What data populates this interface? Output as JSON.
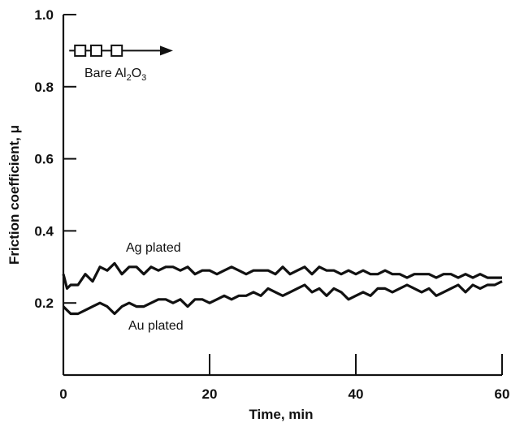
{
  "chart_data": {
    "type": "line",
    "title": "",
    "xlabel": "Time, min",
    "ylabel": "Friction coefficient, μ",
    "xlim": [
      0,
      60
    ],
    "ylim": [
      0,
      1.0
    ],
    "x_ticks": [
      0,
      20,
      40,
      60
    ],
    "x_tick_labels": [
      "0",
      "20",
      "40",
      "60"
    ],
    "y_ticks": [
      0.2,
      0.4,
      0.6,
      0.8,
      1.0
    ],
    "y_tick_labels": [
      "0.2",
      "0.4",
      "0.6",
      "0.8",
      "1.0"
    ],
    "grid": false,
    "series": [
      {
        "name": "Ag plated",
        "marker": "none",
        "x": [
          0,
          0.5,
          1,
          2,
          3,
          4,
          5,
          6,
          7,
          8,
          9,
          10,
          11,
          12,
          13,
          14,
          15,
          16,
          17,
          18,
          19,
          20,
          21,
          22,
          23,
          24,
          25,
          26,
          27,
          28,
          29,
          30,
          31,
          32,
          33,
          34,
          35,
          36,
          37,
          38,
          39,
          40,
          41,
          42,
          43,
          44,
          45,
          46,
          47,
          48,
          49,
          50,
          51,
          52,
          53,
          54,
          55,
          56,
          57,
          58,
          59,
          60
        ],
        "values": [
          0.28,
          0.24,
          0.25,
          0.25,
          0.28,
          0.26,
          0.3,
          0.29,
          0.31,
          0.28,
          0.3,
          0.3,
          0.28,
          0.3,
          0.29,
          0.3,
          0.3,
          0.29,
          0.3,
          0.28,
          0.29,
          0.29,
          0.28,
          0.29,
          0.3,
          0.29,
          0.28,
          0.29,
          0.29,
          0.29,
          0.28,
          0.3,
          0.28,
          0.29,
          0.3,
          0.28,
          0.3,
          0.29,
          0.29,
          0.28,
          0.29,
          0.28,
          0.29,
          0.28,
          0.28,
          0.29,
          0.28,
          0.28,
          0.27,
          0.28,
          0.28,
          0.28,
          0.27,
          0.28,
          0.28,
          0.27,
          0.28,
          0.27,
          0.28,
          0.27,
          0.27,
          0.27
        ]
      },
      {
        "name": "Au plated",
        "marker": "none",
        "x": [
          0,
          0.5,
          1,
          2,
          3,
          4,
          5,
          6,
          7,
          8,
          9,
          10,
          11,
          12,
          13,
          14,
          15,
          16,
          17,
          18,
          19,
          20,
          21,
          22,
          23,
          24,
          25,
          26,
          27,
          28,
          29,
          30,
          31,
          32,
          33,
          34,
          35,
          36,
          37,
          38,
          39,
          40,
          41,
          42,
          43,
          44,
          45,
          46,
          47,
          48,
          49,
          50,
          51,
          52,
          53,
          54,
          55,
          56,
          57,
          58,
          59,
          60
        ],
        "values": [
          0.19,
          0.18,
          0.17,
          0.17,
          0.18,
          0.19,
          0.2,
          0.19,
          0.17,
          0.19,
          0.2,
          0.19,
          0.19,
          0.2,
          0.21,
          0.21,
          0.2,
          0.21,
          0.19,
          0.21,
          0.21,
          0.2,
          0.21,
          0.22,
          0.21,
          0.22,
          0.22,
          0.23,
          0.22,
          0.24,
          0.23,
          0.22,
          0.23,
          0.24,
          0.25,
          0.23,
          0.24,
          0.22,
          0.24,
          0.23,
          0.21,
          0.22,
          0.23,
          0.22,
          0.24,
          0.24,
          0.23,
          0.24,
          0.25,
          0.24,
          0.23,
          0.24,
          0.22,
          0.23,
          0.24,
          0.25,
          0.23,
          0.25,
          0.24,
          0.25,
          0.25,
          0.26
        ]
      },
      {
        "name": "Bare Al2O3",
        "marker": "square",
        "x": [
          2.3,
          4.5,
          7.3
        ],
        "values": [
          0.9,
          0.9,
          0.9
        ]
      }
    ],
    "annotations": [
      {
        "text": "Ag plated"
      },
      {
        "text": "Au plated"
      },
      {
        "text_parts": [
          "Bare Al",
          "2",
          "O",
          "3"
        ]
      }
    ],
    "bare_arrow": {
      "x_start": 0.8,
      "x_end": 15.0,
      "y": 0.9
    }
  }
}
